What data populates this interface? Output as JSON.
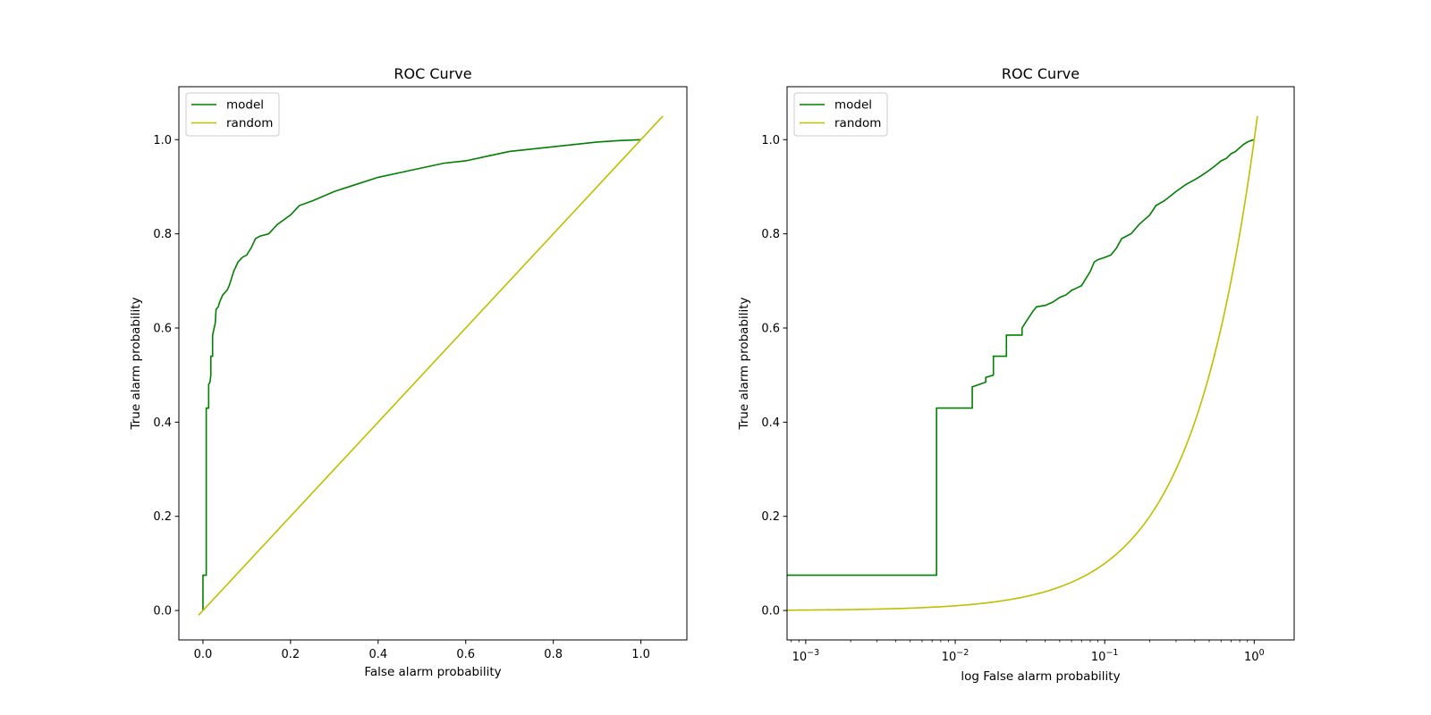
{
  "chart_data": [
    {
      "type": "line",
      "title": "ROC Curve",
      "xlabel": "False alarm probability",
      "ylabel": "True alarm probability",
      "xscale": "linear",
      "xlim": [
        -0.055,
        1.105
      ],
      "ylim": [
        -0.0625,
        1.1125
      ],
      "xticks": [
        0.0,
        0.2,
        0.4,
        0.6,
        0.8,
        1.0
      ],
      "xtick_labels": [
        "0.0",
        "0.2",
        "0.4",
        "0.6",
        "0.8",
        "1.0"
      ],
      "yticks": [
        0.0,
        0.2,
        0.4,
        0.6,
        0.8,
        1.0
      ],
      "ytick_labels": [
        "0.0",
        "0.2",
        "0.4",
        "0.6",
        "0.8",
        "1.0"
      ],
      "legend_position": "top-left",
      "series": [
        {
          "name": "model",
          "color": "#008000",
          "x": [
            0.0,
            0.0,
            0.0075,
            0.0075,
            0.0075,
            0.013,
            0.013,
            0.016,
            0.018,
            0.018,
            0.022,
            0.022,
            0.028,
            0.03,
            0.035,
            0.038,
            0.045,
            0.055,
            0.06,
            0.07,
            0.08,
            0.085,
            0.09,
            0.1,
            0.11,
            0.12,
            0.13,
            0.15,
            0.17,
            0.2,
            0.22,
            0.25,
            0.3,
            0.35,
            0.4,
            0.45,
            0.5,
            0.55,
            0.6,
            0.65,
            0.7,
            0.75,
            0.8,
            0.85,
            0.9,
            0.95,
            1.0
          ],
          "y": [
            0.0,
            0.075,
            0.075,
            0.43,
            0.43,
            0.43,
            0.48,
            0.485,
            0.5,
            0.54,
            0.54,
            0.585,
            0.61,
            0.64,
            0.645,
            0.655,
            0.67,
            0.68,
            0.69,
            0.72,
            0.74,
            0.745,
            0.75,
            0.755,
            0.77,
            0.79,
            0.795,
            0.8,
            0.82,
            0.84,
            0.86,
            0.87,
            0.89,
            0.905,
            0.92,
            0.93,
            0.94,
            0.95,
            0.955,
            0.965,
            0.975,
            0.98,
            0.985,
            0.99,
            0.995,
            0.998,
            1.0
          ]
        },
        {
          "name": "random",
          "color": "#bfbf00",
          "x": [
            -0.01,
            1.05
          ],
          "y": [
            -0.01,
            1.05
          ]
        }
      ]
    },
    {
      "type": "line",
      "title": "ROC Curve",
      "xlabel": "log False alarm probability",
      "ylabel": "True alarm probability",
      "xscale": "log",
      "xlim": [
        0.00075,
        1.85
      ],
      "ylim": [
        -0.0625,
        1.1125
      ],
      "xticks": [
        0.001,
        0.01,
        0.1,
        1
      ],
      "xtick_labels": [
        "10",
        "10",
        "10",
        "10"
      ],
      "xtick_exponents": [
        "−3",
        "−2",
        "−1",
        "0"
      ],
      "yticks": [
        0.0,
        0.2,
        0.4,
        0.6,
        0.8,
        1.0
      ],
      "ytick_labels": [
        "0.0",
        "0.2",
        "0.4",
        "0.6",
        "0.8",
        "1.0"
      ],
      "legend_position": "top-left",
      "series": [
        {
          "name": "model",
          "color": "#008000",
          "x": [
            0.00075,
            0.0075,
            0.0075,
            0.013,
            0.013,
            0.016,
            0.016,
            0.018,
            0.018,
            0.022,
            0.022,
            0.028,
            0.028,
            0.03,
            0.033,
            0.035,
            0.04,
            0.045,
            0.05,
            0.055,
            0.06,
            0.065,
            0.07,
            0.08,
            0.085,
            0.09,
            0.1,
            0.11,
            0.12,
            0.13,
            0.15,
            0.17,
            0.2,
            0.22,
            0.25,
            0.3,
            0.35,
            0.4,
            0.45,
            0.5,
            0.55,
            0.6,
            0.65,
            0.7,
            0.75,
            0.8,
            0.85,
            0.9,
            0.95,
            1.0
          ],
          "y": [
            0.075,
            0.075,
            0.43,
            0.43,
            0.475,
            0.485,
            0.495,
            0.5,
            0.54,
            0.54,
            0.585,
            0.585,
            0.6,
            0.615,
            0.635,
            0.645,
            0.648,
            0.655,
            0.665,
            0.67,
            0.68,
            0.685,
            0.69,
            0.72,
            0.74,
            0.745,
            0.75,
            0.755,
            0.77,
            0.79,
            0.8,
            0.82,
            0.84,
            0.86,
            0.87,
            0.89,
            0.905,
            0.915,
            0.925,
            0.935,
            0.945,
            0.955,
            0.96,
            0.97,
            0.975,
            0.983,
            0.99,
            0.995,
            0.998,
            1.0
          ]
        },
        {
          "name": "random",
          "color": "#bfbf00",
          "x_from": 0.00075,
          "x_to": 1.05,
          "y_equals_x": true
        }
      ]
    }
  ]
}
